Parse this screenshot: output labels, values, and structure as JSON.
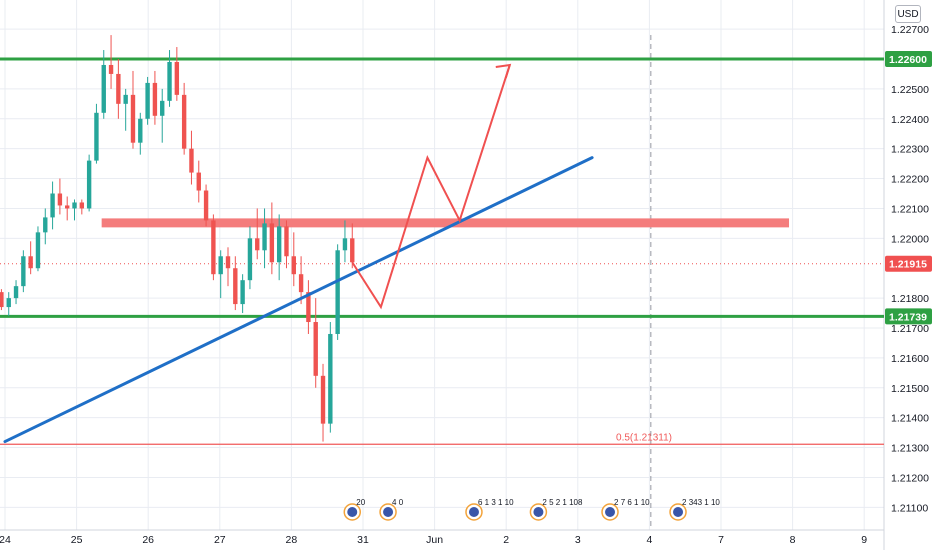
{
  "currency": "USD",
  "colors": {
    "up": "#26a69a",
    "down": "#ef5350",
    "support_line": "#2ea043",
    "trend_line": "#1f6fc7",
    "resistance_zone": "#f47c7c",
    "projection": "#f05050",
    "fib_line": "#f05a5a",
    "current_price": "#f05050",
    "grid": "#e9ecf2"
  },
  "chart_data": {
    "type": "candlestick",
    "symbol_currency": "USD",
    "y_ticks": [
      "1.22700",
      "1.22500",
      "1.22400",
      "1.22300",
      "1.22200",
      "1.22100",
      "1.22000",
      "1.21800",
      "1.21700",
      "1.21600",
      "1.21500",
      "1.21400",
      "1.21300",
      "1.21200",
      "1.21100"
    ],
    "y_tick_values": [
      1.227,
      1.225,
      1.224,
      1.223,
      1.222,
      1.221,
      1.22,
      1.218,
      1.217,
      1.216,
      1.215,
      1.214,
      1.213,
      1.212,
      1.211
    ],
    "x_ticks": [
      "24",
      "25",
      "26",
      "27",
      "28",
      "31",
      "Jun",
      "2",
      "3",
      "4",
      "7",
      "8",
      "9"
    ],
    "x_tick_positions": [
      0,
      1,
      2,
      3,
      4,
      5,
      6,
      7,
      8,
      9,
      10,
      11,
      12
    ],
    "ylim": [
      1.2102,
      1.2276
    ],
    "xlim": [
      0,
      12.25
    ],
    "price_tags": [
      {
        "label": "1.22600",
        "value": 1.226,
        "color": "#2ea043"
      },
      {
        "label": "1.21915",
        "value": 1.21915,
        "color": "#f05050"
      },
      {
        "label": "1.21739",
        "value": 1.21739,
        "color": "#2ea043"
      }
    ],
    "horizontal_lines": [
      {
        "name": "resistance-upper",
        "value": 1.226,
        "color": "#2ea043"
      },
      {
        "name": "support",
        "value": 1.21739,
        "color": "#2ea043"
      },
      {
        "name": "fib-0.5",
        "value": 1.21311,
        "color": "#f05a5a"
      }
    ],
    "fib_label": "0.5(1.21311)",
    "resistance_zone": {
      "x_start": 1.35,
      "x_end": 10.95,
      "y_low": 1.2203,
      "y_high": 1.2206
    },
    "trend_line": {
      "x1": 0,
      "y1": 1.2132,
      "x2": 8.2,
      "y2": 1.2227
    },
    "projection_path": {
      "x": [
        4.85,
        5.25,
        5.9,
        6.35,
        7.05
      ],
      "y": [
        1.2192,
        1.2177,
        1.2227,
        1.2206,
        1.2258
      ]
    },
    "forecast_divider_x": 9.02,
    "current_price": 1.21915,
    "candles": [
      [
        1.2182,
        1.2183,
        1.2176,
        1.2177
      ],
      [
        1.2177,
        1.2182,
        1.2174,
        1.218
      ],
      [
        1.218,
        1.2186,
        1.2178,
        1.2184
      ],
      [
        1.2184,
        1.2196,
        1.2182,
        1.2194
      ],
      [
        1.2194,
        1.2199,
        1.2188,
        1.219
      ],
      [
        1.219,
        1.2204,
        1.2189,
        1.2202
      ],
      [
        1.2202,
        1.221,
        1.2198,
        1.2207
      ],
      [
        1.2207,
        1.2219,
        1.2203,
        1.2215
      ],
      [
        1.2215,
        1.222,
        1.2208,
        1.2211
      ],
      [
        1.2211,
        1.2214,
        1.2206,
        1.221
      ],
      [
        1.221,
        1.2213,
        1.2206,
        1.2212
      ],
      [
        1.2212,
        1.2213,
        1.2208,
        1.221
      ],
      [
        1.221,
        1.2228,
        1.2209,
        1.2226
      ],
      [
        1.2226,
        1.2245,
        1.2225,
        1.2242
      ],
      [
        1.2242,
        1.2263,
        1.224,
        1.2258
      ],
      [
        1.2258,
        1.2268,
        1.225,
        1.2255
      ],
      [
        1.2255,
        1.226,
        1.224,
        1.2245
      ],
      [
        1.2245,
        1.225,
        1.2236,
        1.2248
      ],
      [
        1.2248,
        1.2256,
        1.223,
        1.2232
      ],
      [
        1.2232,
        1.2242,
        1.2228,
        1.224
      ],
      [
        1.224,
        1.2254,
        1.2238,
        1.2252
      ],
      [
        1.2252,
        1.2256,
        1.2238,
        1.2241
      ],
      [
        1.2241,
        1.225,
        1.2232,
        1.2246
      ],
      [
        1.2246,
        1.2263,
        1.2244,
        1.2259
      ],
      [
        1.2259,
        1.2264,
        1.2246,
        1.2248
      ],
      [
        1.2248,
        1.2252,
        1.2228,
        1.223
      ],
      [
        1.223,
        1.2236,
        1.2218,
        1.2222
      ],
      [
        1.2222,
        1.2226,
        1.2212,
        1.2216
      ],
      [
        1.2216,
        1.2218,
        1.2204,
        1.2206
      ],
      [
        1.2206,
        1.2208,
        1.2186,
        1.2188
      ],
      [
        1.2188,
        1.2196,
        1.218,
        1.2194
      ],
      [
        1.2194,
        1.2197,
        1.2184,
        1.219
      ],
      [
        1.219,
        1.2194,
        1.2176,
        1.2178
      ],
      [
        1.2178,
        1.2188,
        1.2175,
        1.2186
      ],
      [
        1.2186,
        1.2204,
        1.2183,
        1.22
      ],
      [
        1.22,
        1.221,
        1.2193,
        1.2196
      ],
      [
        1.2196,
        1.221,
        1.219,
        1.2205
      ],
      [
        1.2205,
        1.2212,
        1.2188,
        1.2192
      ],
      [
        1.2192,
        1.2208,
        1.2186,
        1.2204
      ],
      [
        1.2204,
        1.2206,
        1.219,
        1.2194
      ],
      [
        1.2194,
        1.2202,
        1.2184,
        1.2188
      ],
      [
        1.2188,
        1.2194,
        1.2178,
        1.2182
      ],
      [
        1.2182,
        1.2186,
        1.2168,
        1.2172
      ],
      [
        1.2172,
        1.218,
        1.215,
        1.2154
      ],
      [
        1.2154,
        1.2158,
        1.2132,
        1.2138
      ],
      [
        1.2138,
        1.2172,
        1.2135,
        1.2168
      ],
      [
        1.2168,
        1.2198,
        1.2166,
        1.2196
      ],
      [
        1.2196,
        1.2206,
        1.2192,
        1.22
      ],
      [
        1.22,
        1.2205,
        1.219,
        1.2192
      ]
    ],
    "event_markers": [
      {
        "x": 4.85,
        "label": "20"
      },
      {
        "x": 5.35,
        "label": "4 0"
      },
      {
        "x": 6.55,
        "label": "6 1 3 1 10"
      },
      {
        "x": 7.45,
        "label": "2 5 2 1 108"
      },
      {
        "x": 8.45,
        "label": "2 7 6  1 10"
      },
      {
        "x": 9.4,
        "label": "2 343 1 10"
      }
    ]
  }
}
